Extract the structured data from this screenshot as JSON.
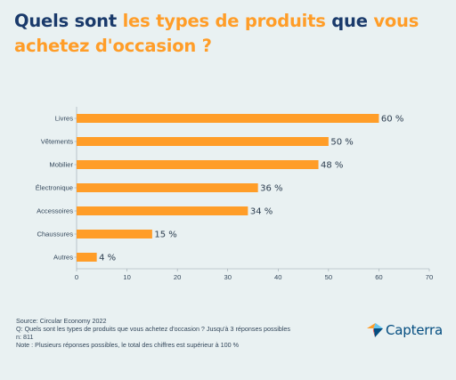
{
  "title": {
    "part1": "Quels sont ",
    "part2": "les types de produits",
    "part3": " que ",
    "part4": "vous achetez d'occasion ?"
  },
  "chart_data": {
    "type": "bar",
    "orientation": "horizontal",
    "categories": [
      "Livres",
      "Vêtements",
      "Mobilier",
      "Électronique",
      "Accessoires",
      "Chaussures",
      "Autres"
    ],
    "values": [
      60,
      50,
      48,
      36,
      34,
      15,
      4
    ],
    "value_labels": [
      "60 %",
      "50 %",
      "48 %",
      "36 %",
      "34 %",
      "15 %",
      "4 %"
    ],
    "x_ticks": [
      "0",
      "10",
      "20",
      "30",
      "40",
      "50",
      "60",
      "70"
    ],
    "xlim": [
      0,
      70
    ],
    "bar_color": "#ff9d28",
    "grid": false
  },
  "footer": {
    "source": "Source: Circular Economy 2022",
    "question": "Q: Quels sont les types de produits que vous achetez d'occasion ? Jusqu'à 3 réponses possibles",
    "n": "n: 811",
    "note": "Note : Plusieurs réponses possibles, le total des chiffres est supérieur à 100 %"
  },
  "logo": {
    "name": "Capterra",
    "icon": "capterra-arrow-icon",
    "colors": [
      "#ff9d28",
      "#68c5ed",
      "#044d80",
      "#e54747"
    ]
  }
}
